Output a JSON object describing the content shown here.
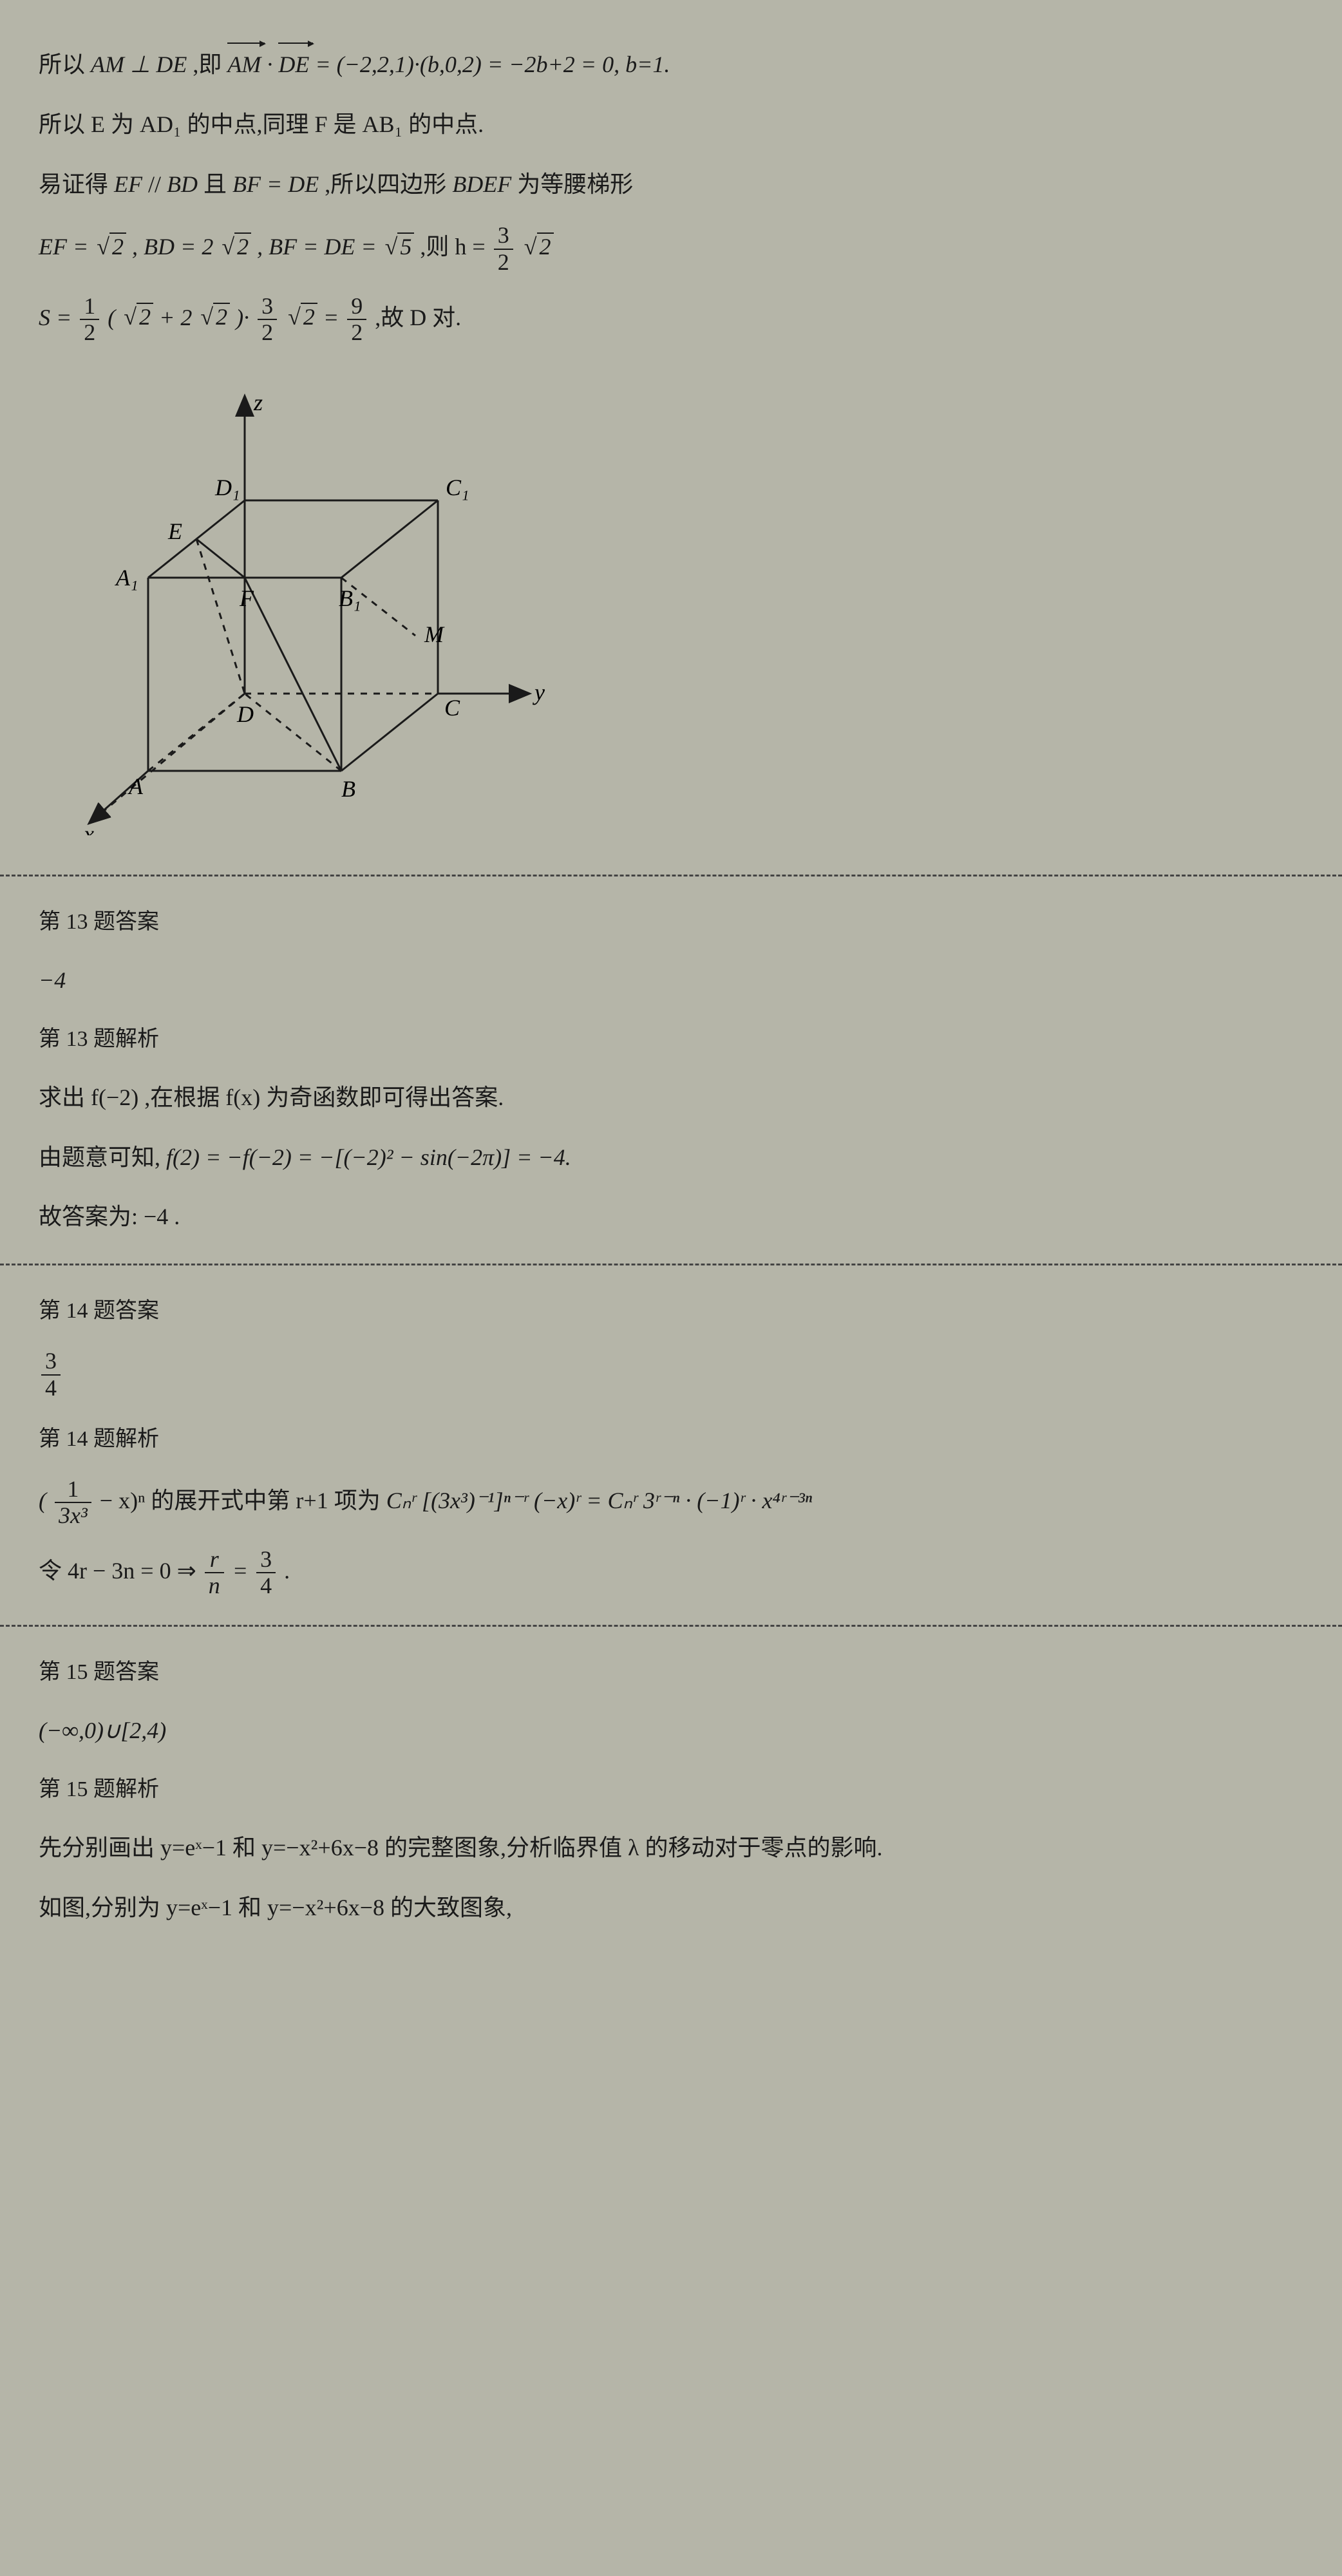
{
  "top": {
    "line1_pre": "所以 ",
    "line1_mid1": "AM ⊥ DE",
    "line1_mid2": " ,即 ",
    "line1_eq": "· = (−2,2,1)·(b,0,2) = −2b+2 = 0, b=1.",
    "vec1": "AM",
    "vec2": "DE",
    "line2": "所以 E 为 AD₁ 的中点,同理 F 是 AB₁ 的中点.",
    "line3": "易证得 EF // BD 且 BF = DE ,所以四边形 BDEF 为等腰梯形",
    "line4_ef": "EF = ",
    "line4_bd": " , BD = 2",
    "line4_bf": " , BF = DE = ",
    "line4_h_pre": " ,则 h = ",
    "line5_s_pre": "S = ",
    "line5_mid": "(",
    "line5_plus": " + 2",
    "line5_close": ")·",
    "line5_eq": " = ",
    "line5_end": " ,故 D 对.",
    "sqrt2": "2",
    "sqrt5": "5",
    "frac_3_2_n": "3",
    "frac_3_2_d": "2",
    "frac_1_2_n": "1",
    "frac_1_2_d": "2",
    "frac_9_2_n": "9",
    "frac_9_2_d": "2"
  },
  "cube": {
    "labels": {
      "z": "z",
      "y": "y",
      "x": "x",
      "A": "A",
      "B": "B",
      "C": "C",
      "D": "D",
      "A1": "A₁",
      "B1": "B₁",
      "C1": "C₁",
      "D1": "D₁",
      "E": "E",
      "F": "F",
      "M": "M"
    },
    "stroke": "#1a1a1a",
    "stroke_width": 3,
    "dash": "10,10"
  },
  "q13": {
    "ans_title": "第 13 题答案",
    "ans": "−4",
    "sol_title": "第 13 题解析",
    "sol_l1": "求出 f(−2) ,在根据 f(x) 为奇函数即可得出答案.",
    "sol_l2_pre": "由题意可知, ",
    "sol_l2_eq": "f(2) = −f(−2) = −[(−2)² − sin(−2π)] = −4.",
    "sol_l3": "故答案为: −4 ."
  },
  "q14": {
    "ans_title": "第 14 题答案",
    "ans_n": "3",
    "ans_d": "4",
    "sol_title": "第 14 题解析",
    "l1_open": "(",
    "l1_frac_n": "1",
    "l1_frac_d": "3x³",
    "l1_mid": " − x)ⁿ 的展开式中第 r+1 项为 ",
    "l1_eq": "Cₙʳ [(3x³)⁻¹]ⁿ⁻ʳ (−x)ʳ = Cₙʳ 3ʳ⁻ⁿ · (−1)ʳ · x⁴ʳ⁻³ⁿ",
    "l2_pre": "令 4r − 3n = 0 ⇒ ",
    "l2_f1_n": "r",
    "l2_f1_d": "n",
    "l2_eq": " = ",
    "l2_f2_n": "3",
    "l2_f2_d": "4",
    "l2_end": "."
  },
  "q15": {
    "ans_title": "第 15 题答案",
    "ans": "(−∞,0)∪[2,4)",
    "sol_title": "第 15 题解析",
    "l1": "先分别画出 y=eˣ−1 和 y=−x²+6x−8 的完整图象,分析临界值 λ 的移动对于零点的影响.",
    "l2": "如图,分别为 y=eˣ−1 和 y=−x²+6x−8 的大致图象,"
  }
}
